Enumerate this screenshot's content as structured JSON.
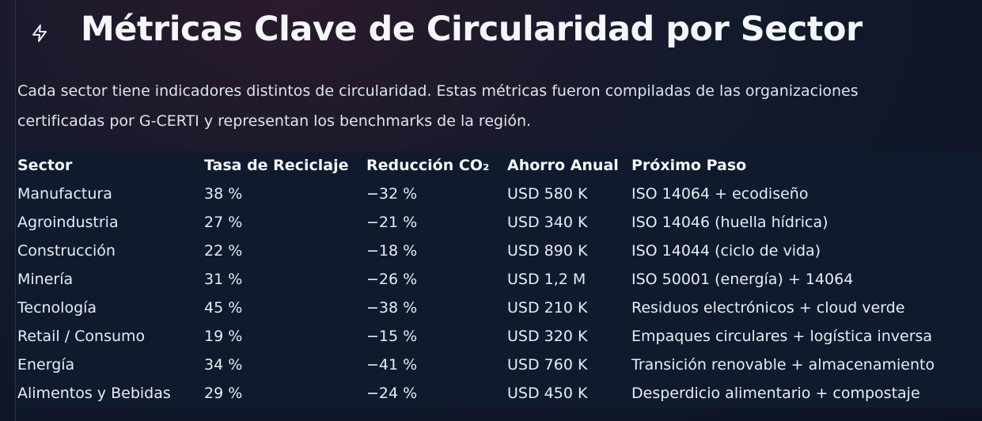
{
  "header": {
    "title": "Métricas Clave de Circularidad por Sector"
  },
  "intro": [
    "Cada sector tiene indicadores distintos de circularidad. Estas métricas fueron compiladas de las organizaciones",
    "certificadas por G-CERTI y representan los benchmarks de la región."
  ],
  "table": {
    "headers": [
      "Sector",
      "Tasa de Reciclaje",
      "Reducción CO₂",
      "Ahorro Anual",
      "Próximo Paso"
    ],
    "rows": [
      [
        "Manufactura",
        "38 %",
        "−32 %",
        "USD 580 K",
        "ISO 14064 + ecodiseño"
      ],
      [
        "Agroindustria",
        "27 %",
        "−21 %",
        "USD 340 K",
        "ISO 14046 (huella hídrica)"
      ],
      [
        "Construcción",
        "22 %",
        "−18 %",
        "USD 890 K",
        "ISO 14044 (ciclo de vida)"
      ],
      [
        "Minería",
        "31 %",
        "−26 %",
        "USD 1,2 M",
        "ISO 50001 (energía) + 14064"
      ],
      [
        "Tecnología",
        "45 %",
        "−38 %",
        "USD 210 K",
        "Residuos electrónicos + cloud verde"
      ],
      [
        "Retail / Consumo",
        "19 %",
        "−15 %",
        "USD 320 K",
        "Empaques circulares + logística inversa"
      ],
      [
        "Energía",
        "34 %",
        "−41 %",
        "USD 760 K",
        "Transición renovable + almacenamiento"
      ],
      [
        "Alimentos y Bebidas",
        "29 %",
        "−24 %",
        "USD 450 K",
        "Desperdicio alimentario + compostaje"
      ]
    ]
  }
}
